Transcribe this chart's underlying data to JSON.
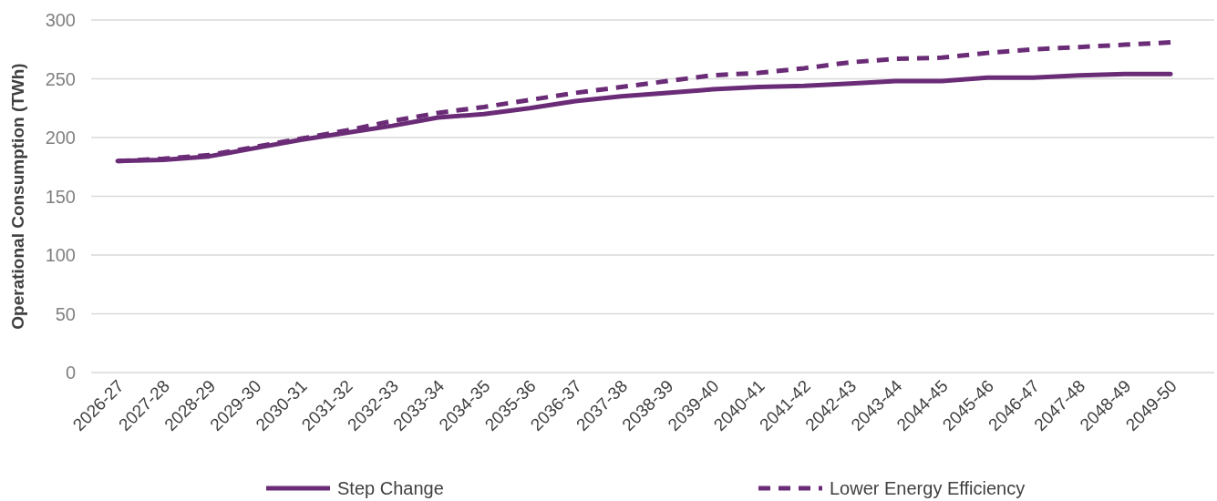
{
  "chart_data": {
    "type": "line",
    "ylabel": "Operational Consumption (TWh)",
    "categories": [
      "2026-27",
      "2027-28",
      "2028-29",
      "2029-30",
      "2030-31",
      "2031-32",
      "2032-33",
      "2033-34",
      "2034-35",
      "2035-36",
      "2036-37",
      "2037-38",
      "2038-39",
      "2039-40",
      "2040-41",
      "2041-42",
      "2042-43",
      "2043-44",
      "2044-45",
      "2045-46",
      "2046-47",
      "2047-48",
      "2048-49",
      "2049-50"
    ],
    "series": [
      {
        "name": "Step Change",
        "color": "#6b2c77",
        "line_style": "solid",
        "values": [
          180,
          181,
          184,
          191,
          198,
          204,
          210,
          217,
          220,
          225,
          231,
          235,
          238,
          241,
          243,
          244,
          246,
          248,
          248,
          251,
          251,
          253,
          254,
          254
        ]
      },
      {
        "name": "Lower Energy Efficiency",
        "color": "#6b2c77",
        "line_style": "dashed",
        "values": [
          180,
          182,
          185,
          192,
          199,
          206,
          214,
          221,
          226,
          232,
          238,
          243,
          248,
          253,
          255,
          259,
          264,
          267,
          268,
          272,
          275,
          277,
          279,
          281
        ]
      }
    ],
    "ylim": [
      0,
      300
    ],
    "yticks": [
      0,
      50,
      100,
      150,
      200,
      250,
      300
    ],
    "grid": "y",
    "legend": "bottom",
    "marker": "none"
  }
}
